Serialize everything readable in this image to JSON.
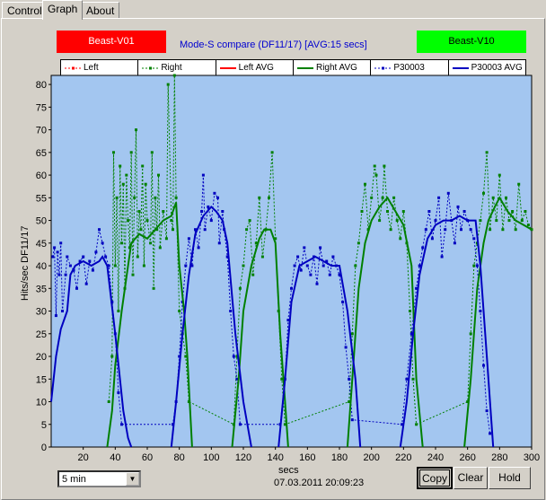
{
  "tabs": [
    {
      "label": "Control",
      "active": false
    },
    {
      "label": "Graph",
      "active": true
    },
    {
      "label": "About",
      "active": false
    }
  ],
  "graph": {
    "title": "Mode-S compare (DF11/17) [AVG:15 secs]",
    "left_badge": {
      "label": "Beast-V01",
      "color": "#ff0000"
    },
    "right_badge": {
      "label": "Beast-V10",
      "color": "#00ff00"
    },
    "legend": [
      {
        "label": "Left",
        "color": "#ff0000",
        "style": "dotted-markers"
      },
      {
        "label": "Right",
        "color": "#008000",
        "style": "dotted-markers"
      },
      {
        "label": "Left AVG",
        "color": "#ff0000",
        "style": "solid"
      },
      {
        "label": "Right AVG",
        "color": "#008000",
        "style": "solid"
      },
      {
        "label": "P30003",
        "color": "#0000c0",
        "style": "dotted-markers"
      },
      {
        "label": "P30003 AVG",
        "color": "#0000c0",
        "style": "solid"
      }
    ],
    "y_axis_label": "Hits/sec DF11/17",
    "x_axis_label": "secs",
    "timestamp": "07.03.2011 20:09:23"
  },
  "chart_data": {
    "type": "line",
    "xlim": [
      0,
      300
    ],
    "ylim": [
      0,
      82
    ],
    "x_ticks": [
      20,
      40,
      60,
      80,
      100,
      120,
      140,
      160,
      180,
      200,
      220,
      240,
      260,
      280,
      300
    ],
    "y_ticks": [
      0,
      5,
      10,
      15,
      20,
      25,
      30,
      35,
      40,
      45,
      50,
      55,
      60,
      65,
      70,
      75,
      80
    ],
    "background": "#a3c6f0",
    "series": [
      {
        "name": "Right AVG",
        "color": "#008000",
        "x": [
          35,
          38,
          40,
          44,
          48,
          50,
          55,
          60,
          65,
          70,
          75,
          78,
          80,
          83,
          85,
          88
        ],
        "y": [
          0,
          8,
          18,
          30,
          40,
          45,
          47,
          46,
          48,
          50,
          51,
          54,
          40,
          30,
          20,
          0
        ]
      },
      {
        "name": "Right AVG",
        "color": "#008000",
        "x": [
          113,
          117,
          120,
          125,
          130,
          133,
          137,
          140,
          143,
          146,
          148
        ],
        "y": [
          0,
          15,
          30,
          40,
          46,
          48,
          48,
          45,
          25,
          10,
          0
        ]
      },
      {
        "name": "Right AVG",
        "color": "#008000",
        "x": [
          185,
          188,
          192,
          196,
          200,
          205,
          210,
          215,
          220,
          225,
          228,
          232
        ],
        "y": [
          0,
          15,
          35,
          45,
          50,
          53,
          55,
          52,
          49,
          40,
          15,
          0
        ]
      },
      {
        "name": "Right AVG",
        "color": "#008000",
        "x": [
          258,
          262,
          266,
          270,
          273,
          277,
          280,
          285,
          290,
          295,
          300
        ],
        "y": [
          0,
          15,
          35,
          45,
          50,
          53,
          55,
          52,
          50,
          49,
          48
        ]
      },
      {
        "name": "P30003 AVG",
        "color": "#0000c0",
        "x": [
          0,
          3,
          6,
          10,
          12,
          15,
          20,
          25,
          30,
          32,
          35,
          40,
          45,
          48,
          50
        ],
        "y": [
          10,
          20,
          26,
          30,
          38,
          40,
          41,
          40,
          41,
          42,
          40,
          25,
          8,
          2,
          0
        ]
      },
      {
        "name": "P30003 AVG",
        "color": "#0000c0",
        "x": [
          75,
          78,
          82,
          86,
          90,
          95,
          100,
          103,
          107,
          110,
          115,
          120,
          125
        ],
        "y": [
          0,
          10,
          25,
          38,
          47,
          51,
          53,
          52,
          50,
          45,
          25,
          10,
          0
        ]
      },
      {
        "name": "P30003 AVG",
        "color": "#0000c0",
        "x": [
          142,
          146,
          150,
          155,
          160,
          165,
          170,
          175,
          180,
          185,
          190,
          193
        ],
        "y": [
          0,
          15,
          32,
          40,
          41,
          42,
          41,
          40,
          40,
          30,
          15,
          0
        ]
      },
      {
        "name": "P30003 AVG",
        "color": "#0000c0",
        "x": [
          218,
          222,
          226,
          230,
          235,
          240,
          245,
          250,
          255,
          260,
          265,
          268,
          272,
          276
        ],
        "y": [
          0,
          10,
          25,
          38,
          46,
          49,
          50,
          50,
          51,
          50,
          50,
          40,
          20,
          0
        ]
      }
    ],
    "scatter_series": [
      {
        "name": "Right",
        "color": "#008000",
        "points": [
          [
            36,
            10
          ],
          [
            38,
            20
          ],
          [
            39,
            65
          ],
          [
            40,
            40
          ],
          [
            41,
            55
          ],
          [
            42,
            30
          ],
          [
            43,
            62
          ],
          [
            44,
            45
          ],
          [
            45,
            58
          ],
          [
            46,
            35
          ],
          [
            47,
            60
          ],
          [
            48,
            50
          ],
          [
            49,
            44
          ],
          [
            50,
            65
          ],
          [
            51,
            38
          ],
          [
            52,
            55
          ],
          [
            53,
            70
          ],
          [
            54,
            42
          ],
          [
            55,
            52
          ],
          [
            56,
            48
          ],
          [
            57,
            62
          ],
          [
            58,
            40
          ],
          [
            59,
            58
          ],
          [
            60,
            50
          ],
          [
            62,
            45
          ],
          [
            63,
            65
          ],
          [
            64,
            35
          ],
          [
            65,
            55
          ],
          [
            66,
            48
          ],
          [
            67,
            60
          ],
          [
            68,
            44
          ],
          [
            70,
            52
          ],
          [
            72,
            46
          ],
          [
            73,
            80
          ],
          [
            75,
            50
          ],
          [
            76,
            48
          ],
          [
            77,
            82
          ],
          [
            78,
            55
          ],
          [
            80,
            30
          ],
          [
            82,
            25
          ],
          [
            84,
            20
          ],
          [
            86,
            10
          ],
          [
            114,
            5
          ],
          [
            116,
            20
          ],
          [
            118,
            35
          ],
          [
            120,
            40
          ],
          [
            122,
            48
          ],
          [
            124,
            50
          ],
          [
            126,
            38
          ],
          [
            128,
            45
          ],
          [
            130,
            55
          ],
          [
            132,
            42
          ],
          [
            134,
            48
          ],
          [
            136,
            55
          ],
          [
            138,
            65
          ],
          [
            140,
            46
          ],
          [
            142,
            30
          ],
          [
            144,
            15
          ],
          [
            146,
            5
          ],
          [
            186,
            10
          ],
          [
            188,
            25
          ],
          [
            190,
            40
          ],
          [
            192,
            45
          ],
          [
            194,
            52
          ],
          [
            196,
            58
          ],
          [
            198,
            48
          ],
          [
            200,
            55
          ],
          [
            202,
            62
          ],
          [
            203,
            60
          ],
          [
            205,
            50
          ],
          [
            207,
            55
          ],
          [
            208,
            62
          ],
          [
            210,
            52
          ],
          [
            212,
            48
          ],
          [
            214,
            55
          ],
          [
            216,
            50
          ],
          [
            218,
            46
          ],
          [
            220,
            52
          ],
          [
            222,
            45
          ],
          [
            224,
            30
          ],
          [
            226,
            15
          ],
          [
            228,
            5
          ],
          [
            260,
            10
          ],
          [
            262,
            25
          ],
          [
            264,
            40
          ],
          [
            266,
            45
          ],
          [
            268,
            50
          ],
          [
            270,
            56
          ],
          [
            272,
            65
          ],
          [
            274,
            48
          ],
          [
            276,
            55
          ],
          [
            278,
            50
          ],
          [
            280,
            60
          ],
          [
            282,
            48
          ],
          [
            284,
            55
          ],
          [
            286,
            50
          ],
          [
            288,
            52
          ],
          [
            290,
            48
          ],
          [
            292,
            58
          ],
          [
            294,
            50
          ],
          [
            296,
            52
          ],
          [
            298,
            49
          ],
          [
            300,
            48
          ]
        ]
      },
      {
        "name": "P30003",
        "color": "#0000c0",
        "points": [
          [
            1,
            42
          ],
          [
            2,
            44
          ],
          [
            3,
            29
          ],
          [
            4,
            43
          ],
          [
            5,
            38
          ],
          [
            6,
            45
          ],
          [
            7,
            30
          ],
          [
            9,
            38
          ],
          [
            10,
            42
          ],
          [
            12,
            40
          ],
          [
            14,
            39
          ],
          [
            16,
            35
          ],
          [
            18,
            41
          ],
          [
            20,
            42
          ],
          [
            22,
            36
          ],
          [
            24,
            41
          ],
          [
            26,
            39
          ],
          [
            28,
            43
          ],
          [
            30,
            48
          ],
          [
            32,
            45
          ],
          [
            34,
            42
          ],
          [
            36,
            40
          ],
          [
            38,
            32
          ],
          [
            40,
            25
          ],
          [
            42,
            12
          ],
          [
            44,
            5
          ],
          [
            76,
            5
          ],
          [
            78,
            10
          ],
          [
            80,
            20
          ],
          [
            82,
            32
          ],
          [
            84,
            40
          ],
          [
            86,
            46
          ],
          [
            88,
            40
          ],
          [
            90,
            48
          ],
          [
            92,
            44
          ],
          [
            94,
            52
          ],
          [
            95,
            60
          ],
          [
            96,
            48
          ],
          [
            98,
            53
          ],
          [
            100,
            50
          ],
          [
            102,
            56
          ],
          [
            104,
            55
          ],
          [
            105,
            45
          ],
          [
            107,
            52
          ],
          [
            108,
            48
          ],
          [
            110,
            42
          ],
          [
            112,
            30
          ],
          [
            114,
            20
          ],
          [
            116,
            15
          ],
          [
            118,
            5
          ],
          [
            143,
            5
          ],
          [
            146,
            15
          ],
          [
            148,
            28
          ],
          [
            150,
            35
          ],
          [
            152,
            40
          ],
          [
            154,
            42
          ],
          [
            156,
            39
          ],
          [
            158,
            44
          ],
          [
            160,
            40
          ],
          [
            162,
            38
          ],
          [
            164,
            42
          ],
          [
            166,
            36
          ],
          [
            168,
            44
          ],
          [
            170,
            40
          ],
          [
            172,
            41
          ],
          [
            174,
            38
          ],
          [
            176,
            42
          ],
          [
            178,
            40
          ],
          [
            180,
            38
          ],
          [
            182,
            32
          ],
          [
            184,
            22
          ],
          [
            186,
            15
          ],
          [
            188,
            6
          ],
          [
            219,
            5
          ],
          [
            222,
            15
          ],
          [
            225,
            25
          ],
          [
            228,
            35
          ],
          [
            230,
            40
          ],
          [
            232,
            44
          ],
          [
            234,
            48
          ],
          [
            236,
            52
          ],
          [
            238,
            46
          ],
          [
            240,
            50
          ],
          [
            242,
            55
          ],
          [
            244,
            42
          ],
          [
            246,
            48
          ],
          [
            248,
            56
          ],
          [
            250,
            50
          ],
          [
            252,
            45
          ],
          [
            254,
            53
          ],
          [
            256,
            48
          ],
          [
            258,
            52
          ],
          [
            260,
            50
          ],
          [
            262,
            48
          ],
          [
            264,
            46
          ],
          [
            266,
            40
          ],
          [
            268,
            30
          ],
          [
            270,
            18
          ],
          [
            272,
            8
          ],
          [
            274,
            3
          ]
        ]
      }
    ]
  },
  "controls": {
    "interval": "5 min",
    "copy_label": "Copy",
    "clear_label": "Clear",
    "hold_label": "Hold"
  }
}
